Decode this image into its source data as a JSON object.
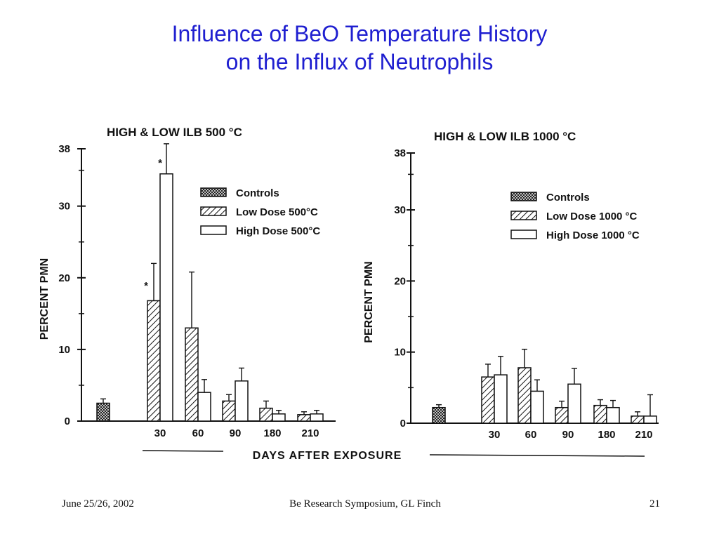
{
  "slide": {
    "title_line1": "Influence of BeO Temperature History",
    "title_line2": "on the Influx of Neutrophils",
    "shared_xlabel": "DAYS AFTER EXPOSURE",
    "footer": {
      "date": "June 25/26, 2002",
      "event": "Be Research Symposium, GL Finch",
      "page": "21"
    },
    "colors": {
      "title": "#1f1fd0",
      "ink": "#111111"
    }
  },
  "chart_data": [
    {
      "type": "bar",
      "title": "HIGH & LOW ILB 500 °C",
      "ylabel": "PERCENT PMN",
      "xlabel": "DAYS AFTER EXPOSURE",
      "ylim": [
        0,
        38
      ],
      "yticks": [
        "0",
        "10",
        "20",
        "30",
        "38"
      ],
      "ytick_values": [
        0,
        10,
        20,
        30,
        38
      ],
      "legend_position": "top-right",
      "controls": {
        "name": "Controls",
        "value": 2.5,
        "error": 0.6
      },
      "categories": [
        "30",
        "60",
        "90",
        "180",
        "210"
      ],
      "series": [
        {
          "name": "Low Dose 500°C",
          "pattern": "hatch",
          "values": [
            16.8,
            13.0,
            2.8,
            1.8,
            0.9
          ],
          "errors": [
            5.2,
            7.8,
            0.9,
            1.0,
            0.4
          ]
        },
        {
          "name": "High Dose 500°C",
          "pattern": "open",
          "values": [
            34.5,
            4.0,
            5.6,
            1.0,
            1.0
          ],
          "errors": [
            4.2,
            1.8,
            1.8,
            0.5,
            0.5
          ]
        }
      ],
      "annotations": [
        {
          "text": "*",
          "category": "30",
          "series": "Low Dose 500°C"
        },
        {
          "text": "*",
          "category": "30",
          "series": "High Dose 500°C"
        }
      ]
    },
    {
      "type": "bar",
      "title": "HIGH & LOW ILB 1000 °C",
      "ylabel": "PERCENT PMN",
      "xlabel": "DAYS AFTER EXPOSURE",
      "ylim": [
        0,
        38
      ],
      "yticks": [
        "0",
        "10",
        "20",
        "30",
        "38"
      ],
      "ytick_values": [
        0,
        10,
        20,
        30,
        38
      ],
      "legend_position": "top-right",
      "controls": {
        "name": "Controls",
        "value": 2.2,
        "error": 0.4
      },
      "categories": [
        "30",
        "60",
        "90",
        "180",
        "210"
      ],
      "series": [
        {
          "name": "Low Dose 1000 °C",
          "pattern": "hatch",
          "values": [
            6.5,
            7.8,
            2.2,
            2.5,
            1.0
          ],
          "errors": [
            1.8,
            2.6,
            0.9,
            0.8,
            0.6
          ]
        },
        {
          "name": "High Dose 1000 °C",
          "pattern": "open",
          "values": [
            6.8,
            4.5,
            5.5,
            2.2,
            1.0
          ],
          "errors": [
            2.6,
            1.6,
            2.2,
            1.0,
            3.0
          ]
        }
      ]
    }
  ]
}
